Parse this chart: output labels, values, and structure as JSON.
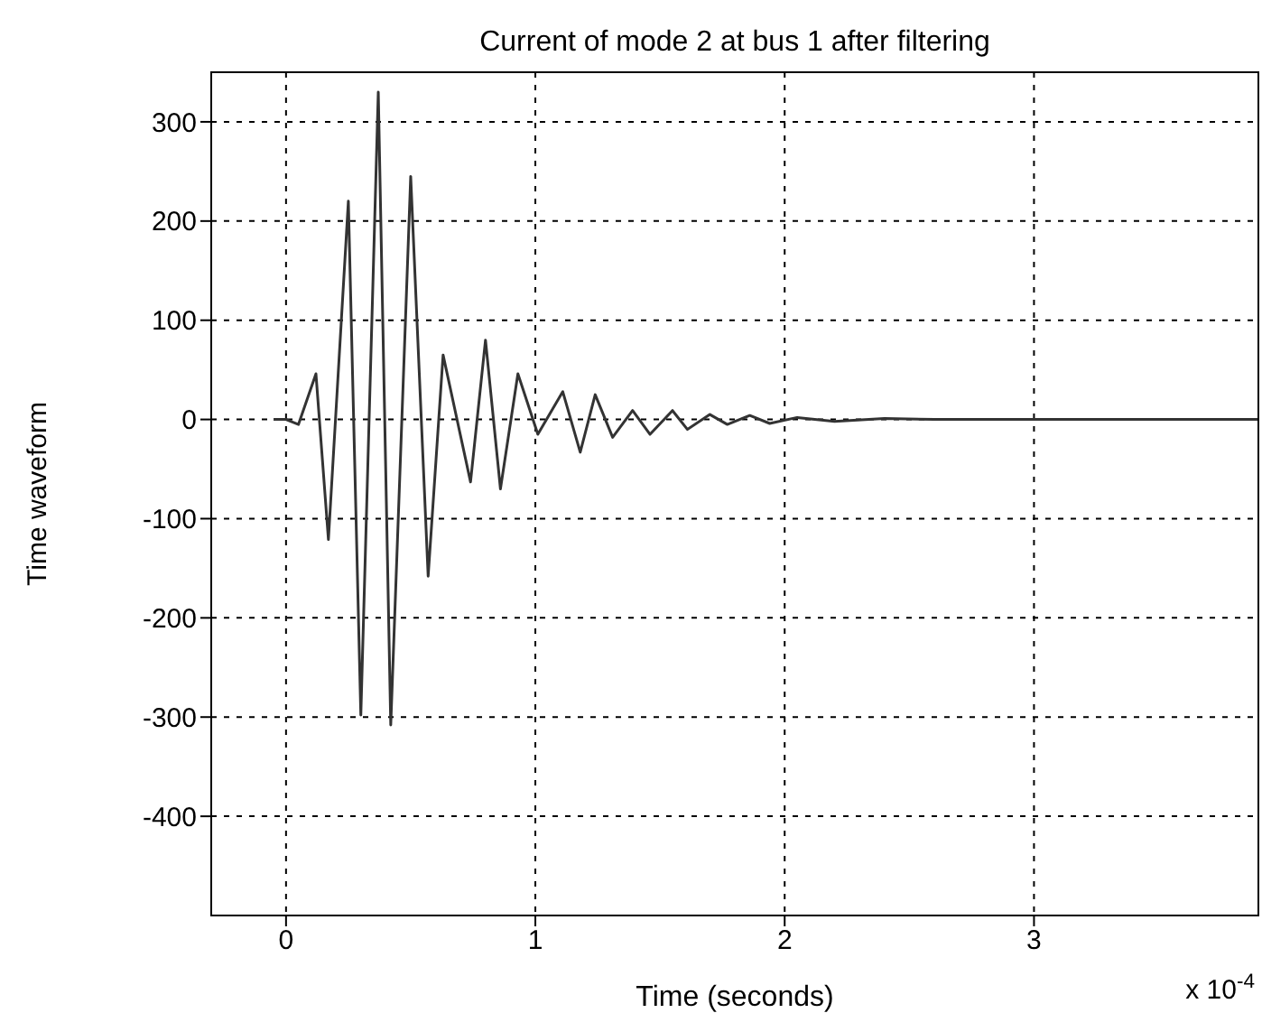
{
  "chart_data": {
    "type": "line",
    "title": "Current of mode 2 at bus 1 after filtering",
    "xlabel": "Time (seconds)",
    "ylabel": "Time waveform",
    "annotations": [
      "x 10$^{-4}$"
    ],
    "x": [
      -0.05,
      0,
      0.05,
      0.12,
      0.17,
      0.25,
      0.3,
      0.37,
      0.42,
      0.5,
      0.57,
      0.63,
      0.74,
      0.8,
      0.86,
      0.93,
      1.01,
      1.11,
      1.18,
      1.24,
      1.31,
      1.39,
      1.46,
      1.55,
      1.61,
      1.7,
      1.77,
      1.86,
      1.94,
      2.05,
      2.2,
      2.4,
      2.6,
      3,
      3.5,
      3.9
    ],
    "series": [
      {
        "color": "#333333",
        "values": [
          0,
          0,
          -5,
          46,
          -121,
          220,
          -298,
          330,
          -308,
          245,
          -158,
          65,
          -63,
          80,
          -70,
          46,
          -15,
          28,
          -33,
          25,
          -18,
          9,
          -15,
          9,
          -10,
          5,
          -5,
          4,
          -4,
          2,
          -2,
          1,
          0,
          0,
          0,
          0
        ]
      }
    ],
    "xlim": [
      -0.3,
      3.9
    ],
    "xticks": [
      0,
      1,
      2,
      3
    ],
    "ylim": [
      -500,
      350
    ],
    "yticks": [
      -400,
      -300,
      -200,
      -100,
      0,
      100,
      200,
      300
    ],
    "grid": true,
    "marker": "none",
    "line_style": "solid"
  }
}
